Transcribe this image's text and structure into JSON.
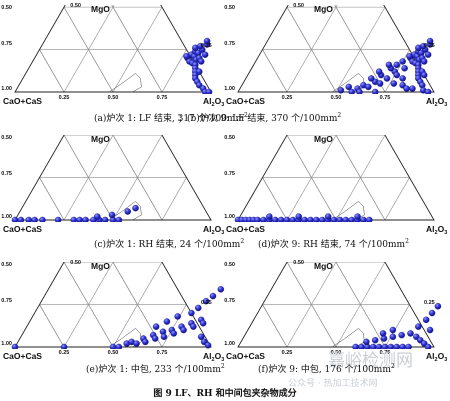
{
  "figure_title": "图 9 LF、RH 和中间包夹杂物成分",
  "apex_labels": {
    "top": "MgO",
    "left": "CaO+CaS",
    "right_main": "Al",
    "right_sub1": "2",
    "right_mid": "O",
    "right_sub2": "3"
  },
  "captions": [
    {
      "text": "(a)炉次 1: LF 结束, 317 个/100mm",
      "sup": "2"
    },
    {
      "text": "；(b)炉次 9: LF 结束, 370 个/100mm",
      "sup": "2"
    },
    {
      "text": "(c)炉次 1: RH 结束, 24 个/100mm",
      "sup": "2"
    },
    {
      "text": "(d)炉次 9: RH 结束, 74 个/100mm",
      "sup": "2"
    },
    {
      "text": "(e)炉次 1: 中包, 233 个/100mm",
      "sup": "2"
    },
    {
      "text": "(f)炉次 9: 中包, 176 个/100mm",
      "sup": "2"
    }
  ],
  "watermark": {
    "main": "嘉峪检测网",
    "sub": "公众号 · 热加工技术网"
  },
  "colors": {
    "marker": "#2b2fd0",
    "marker_highlight": "#8f93ff",
    "grid": "#8a8a8a"
  },
  "chart_data": [
    {
      "type": "scatter",
      "panel": "a",
      "ternary_components": [
        "CaO+CaS",
        "MgO",
        "Al2O3"
      ],
      "left_axis_ticks": [
        "0.50",
        "0.75",
        "1.00"
      ],
      "right_axis_ticks": [
        "0.25"
      ],
      "bottom_axis_ticks": [
        "0.25",
        "0.50",
        "0.75"
      ],
      "points_fraction_al2o3_mgo": [
        [
          0.78,
          0.2
        ],
        [
          0.8,
          0.18
        ],
        [
          0.82,
          0.17
        ],
        [
          0.79,
          0.22
        ],
        [
          0.81,
          0.21
        ],
        [
          0.83,
          0.19
        ],
        [
          0.84,
          0.16
        ],
        [
          0.8,
          0.24
        ],
        [
          0.82,
          0.23
        ],
        [
          0.85,
          0.14
        ],
        [
          0.84,
          0.2
        ],
        [
          0.86,
          0.12
        ],
        [
          0.83,
          0.25
        ],
        [
          0.81,
          0.27
        ],
        [
          0.86,
          0.18
        ],
        [
          0.87,
          0.1
        ],
        [
          0.84,
          0.28
        ],
        [
          0.88,
          0.08
        ],
        [
          0.9,
          0.06
        ],
        [
          0.77,
          0.21
        ],
        [
          0.88,
          0.12
        ],
        [
          0.86,
          0.22
        ],
        [
          0.79,
          0.26
        ],
        [
          0.83,
          0.3
        ],
        [
          0.92,
          0.04
        ],
        [
          0.95,
          0.02
        ],
        [
          0.97,
          0.0
        ],
        [
          0.99,
          0.0
        ]
      ]
    },
    {
      "type": "scatter",
      "panel": "b",
      "ternary_components": [
        "CaO+CaS",
        "MgO",
        "Al2O3"
      ],
      "left_axis_ticks": [
        "0.50",
        "0.75",
        "1.00"
      ],
      "right_axis_ticks": [
        "0.25"
      ],
      "bottom_axis_ticks": [
        "0.25",
        "0.50",
        "0.75"
      ],
      "points_fraction_al2o3_mgo": [
        [
          0.78,
          0.2
        ],
        [
          0.8,
          0.18
        ],
        [
          0.82,
          0.17
        ],
        [
          0.79,
          0.22
        ],
        [
          0.81,
          0.21
        ],
        [
          0.83,
          0.19
        ],
        [
          0.84,
          0.16
        ],
        [
          0.8,
          0.24
        ],
        [
          0.82,
          0.23
        ],
        [
          0.85,
          0.14
        ],
        [
          0.84,
          0.2
        ],
        [
          0.86,
          0.12
        ],
        [
          0.83,
          0.25
        ],
        [
          0.81,
          0.27
        ],
        [
          0.86,
          0.18
        ],
        [
          0.87,
          0.1
        ],
        [
          0.84,
          0.28
        ],
        [
          0.88,
          0.08
        ],
        [
          0.9,
          0.06
        ],
        [
          0.77,
          0.21
        ],
        [
          0.88,
          0.12
        ],
        [
          0.86,
          0.22
        ],
        [
          0.79,
          0.26
        ],
        [
          0.83,
          0.3
        ],
        [
          0.6,
          0.02
        ],
        [
          0.62,
          0.04
        ],
        [
          0.65,
          0.03
        ],
        [
          0.67,
          0.06
        ],
        [
          0.7,
          0.05
        ],
        [
          0.72,
          0.08
        ],
        [
          0.68,
          0.1
        ],
        [
          0.74,
          0.12
        ],
        [
          0.71,
          0.14
        ],
        [
          0.76,
          0.1
        ],
        [
          0.73,
          0.16
        ],
        [
          0.64,
          0.08
        ],
        [
          0.66,
          0.12
        ],
        [
          0.69,
          0.16
        ],
        [
          0.75,
          0.18
        ],
        [
          0.78,
          0.14
        ],
        [
          0.8,
          0.08
        ],
        [
          0.77,
          0.05
        ],
        [
          0.82,
          0.04
        ],
        [
          0.85,
          0.02
        ],
        [
          0.88,
          0.02
        ],
        [
          0.92,
          0.04
        ],
        [
          0.94,
          0.01
        ],
        [
          0.97,
          0.0
        ],
        [
          0.58,
          0.0
        ],
        [
          0.62,
          0.0
        ],
        [
          0.7,
          0.0
        ],
        [
          0.55,
          0.03
        ],
        [
          0.52,
          0.01
        ],
        [
          0.9,
          0.1
        ]
      ]
    },
    {
      "type": "scatter",
      "panel": "c",
      "ternary_components": [
        "CaO+CaS",
        "MgO",
        "Al2O3"
      ],
      "left_axis_ticks": [
        "0.50",
        "0.75",
        "1.00"
      ],
      "points_fraction_al2o3_mgo": [
        [
          0.0,
          0.0
        ],
        [
          0.03,
          0.0
        ],
        [
          0.07,
          0.0
        ],
        [
          0.1,
          0.0
        ],
        [
          0.14,
          0.0
        ],
        [
          0.22,
          0.0
        ],
        [
          0.3,
          0.0
        ],
        [
          0.33,
          0.0
        ],
        [
          0.36,
          0.0
        ],
        [
          0.4,
          0.0
        ],
        [
          0.43,
          0.0
        ],
        [
          0.46,
          0.0
        ],
        [
          0.5,
          0.0
        ],
        [
          0.53,
          0.0
        ],
        [
          0.41,
          0.02
        ],
        [
          0.48,
          0.03
        ],
        [
          0.55,
          0.05
        ],
        [
          0.58,
          0.07
        ]
      ]
    },
    {
      "type": "scatter",
      "panel": "d",
      "ternary_components": [
        "CaO+CaS",
        "MgO",
        "Al2O3"
      ],
      "left_axis_ticks": [
        "0.50",
        "0.75",
        "1.00"
      ],
      "points_fraction_al2o3_mgo": [
        [
          0.0,
          0.0
        ],
        [
          0.02,
          0.0
        ],
        [
          0.04,
          0.0
        ],
        [
          0.06,
          0.0
        ],
        [
          0.08,
          0.0
        ],
        [
          0.1,
          0.0
        ],
        [
          0.13,
          0.0
        ],
        [
          0.16,
          0.0
        ],
        [
          0.19,
          0.0
        ],
        [
          0.22,
          0.0
        ],
        [
          0.25,
          0.0
        ],
        [
          0.28,
          0.0
        ],
        [
          0.31,
          0.0
        ],
        [
          0.34,
          0.0
        ],
        [
          0.37,
          0.0
        ],
        [
          0.4,
          0.0
        ],
        [
          0.43,
          0.0
        ],
        [
          0.46,
          0.0
        ],
        [
          0.49,
          0.0
        ],
        [
          0.52,
          0.0
        ],
        [
          0.55,
          0.0
        ],
        [
          0.58,
          0.0
        ],
        [
          0.61,
          0.0
        ],
        [
          0.64,
          0.0
        ],
        [
          0.67,
          0.0
        ],
        [
          0.15,
          0.02
        ],
        [
          0.3,
          0.02
        ],
        [
          0.45,
          0.02
        ],
        [
          0.6,
          0.02
        ]
      ]
    },
    {
      "type": "scatter",
      "panel": "e",
      "ternary_components": [
        "CaO+CaS",
        "MgO",
        "Al2O3"
      ],
      "left_axis_ticks": [
        "0.50",
        "0.75",
        "1.00"
      ],
      "right_axis_ticks": [
        "0.25"
      ],
      "bottom_axis_ticks": [
        "0.25",
        "0.50",
        "0.75"
      ],
      "points_fraction_al2o3_mgo": [
        [
          0.0,
          0.0
        ],
        [
          0.25,
          0.0
        ],
        [
          0.5,
          0.0
        ],
        [
          0.53,
          0.0
        ],
        [
          0.56,
          0.02
        ],
        [
          0.58,
          0.03
        ],
        [
          0.61,
          0.02
        ],
        [
          0.63,
          0.05
        ],
        [
          0.65,
          0.03
        ],
        [
          0.67,
          0.07
        ],
        [
          0.69,
          0.05
        ],
        [
          0.71,
          0.09
        ],
        [
          0.73,
          0.06
        ],
        [
          0.75,
          0.1
        ],
        [
          0.77,
          0.08
        ],
        [
          0.79,
          0.12
        ],
        [
          0.81,
          0.1
        ],
        [
          0.83,
          0.14
        ],
        [
          0.85,
          0.12
        ],
        [
          0.87,
          0.16
        ],
        [
          0.89,
          0.14
        ],
        [
          0.8,
          0.2
        ],
        [
          0.82,
          0.23
        ],
        [
          0.84,
          0.27
        ],
        [
          0.86,
          0.3
        ],
        [
          0.88,
          0.34
        ],
        [
          0.66,
          0.12
        ],
        [
          0.7,
          0.15
        ],
        [
          0.74,
          0.18
        ],
        [
          0.92,
          0.06
        ],
        [
          0.95,
          0.03
        ],
        [
          0.98,
          0.01
        ]
      ]
    },
    {
      "type": "scatter",
      "panel": "f",
      "ternary_components": [
        "CaO+CaS",
        "MgO",
        "Al2O3"
      ],
      "left_axis_ticks": [
        "0.50",
        "0.75",
        "1.00"
      ],
      "right_axis_ticks": [
        "0.25"
      ],
      "bottom_axis_ticks": [
        "0.25",
        "0.50",
        "0.75"
      ],
      "points_fraction_al2o3_mgo": [
        [
          0.6,
          0.0
        ],
        [
          0.63,
          0.0
        ],
        [
          0.66,
          0.0
        ],
        [
          0.69,
          0.0
        ],
        [
          0.72,
          0.0
        ],
        [
          0.75,
          0.0
        ],
        [
          0.78,
          0.0
        ],
        [
          0.81,
          0.0
        ],
        [
          0.84,
          0.0
        ],
        [
          0.87,
          0.0
        ],
        [
          0.64,
          0.03
        ],
        [
          0.68,
          0.04
        ],
        [
          0.72,
          0.05
        ],
        [
          0.76,
          0.06
        ],
        [
          0.8,
          0.07
        ],
        [
          0.84,
          0.08
        ],
        [
          0.88,
          0.06
        ],
        [
          0.91,
          0.04
        ],
        [
          0.94,
          0.02
        ],
        [
          0.97,
          0.0
        ],
        [
          0.86,
          0.12
        ],
        [
          0.88,
          0.16
        ],
        [
          0.89,
          0.2
        ],
        [
          0.9,
          0.24
        ],
        [
          0.93,
          0.1
        ],
        [
          0.7,
          0.08
        ],
        [
          0.74,
          0.1
        ]
      ]
    }
  ]
}
